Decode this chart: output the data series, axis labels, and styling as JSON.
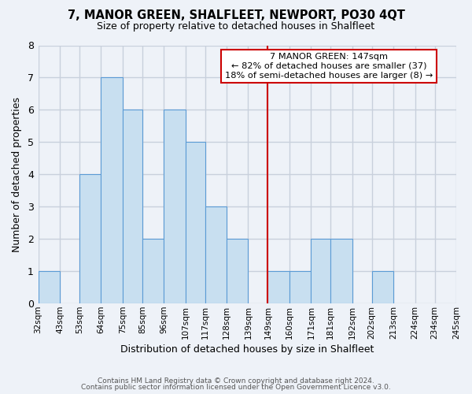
{
  "title": "7, MANOR GREEN, SHALFLEET, NEWPORT, PO30 4QT",
  "subtitle": "Size of property relative to detached houses in Shalfleet",
  "xlabel": "Distribution of detached houses by size in Shalfleet",
  "ylabel": "Number of detached properties",
  "bin_labels": [
    "32sqm",
    "43sqm",
    "53sqm",
    "64sqm",
    "75sqm",
    "85sqm",
    "96sqm",
    "107sqm",
    "117sqm",
    "128sqm",
    "139sqm",
    "149sqm",
    "160sqm",
    "171sqm",
    "181sqm",
    "192sqm",
    "202sqm",
    "213sqm",
    "224sqm",
    "234sqm",
    "245sqm"
  ],
  "counts": [
    1,
    0,
    4,
    7,
    6,
    2,
    6,
    5,
    3,
    2,
    0,
    1,
    1,
    2,
    2,
    0,
    1,
    0,
    0,
    0
  ],
  "bar_color": "#c8dff0",
  "bar_edge_color": "#5b9bd5",
  "subject_bin_index": 11,
  "subject_line_color": "#cc0000",
  "annotation_title": "7 MANOR GREEN: 147sqm",
  "annotation_line1": "← 82% of detached houses are smaller (37)",
  "annotation_line2": "18% of semi-detached houses are larger (8) →",
  "annotation_box_color": "white",
  "annotation_box_edge": "#cc0000",
  "ylim": [
    0,
    8
  ],
  "yticks": [
    0,
    1,
    2,
    3,
    4,
    5,
    6,
    7,
    8
  ],
  "bg_color": "#eef2f8",
  "grid_color": "#c8d0dc",
  "footer1": "Contains HM Land Registry data © Crown copyright and database right 2024.",
  "footer2": "Contains public sector information licensed under the Open Government Licence v3.0."
}
